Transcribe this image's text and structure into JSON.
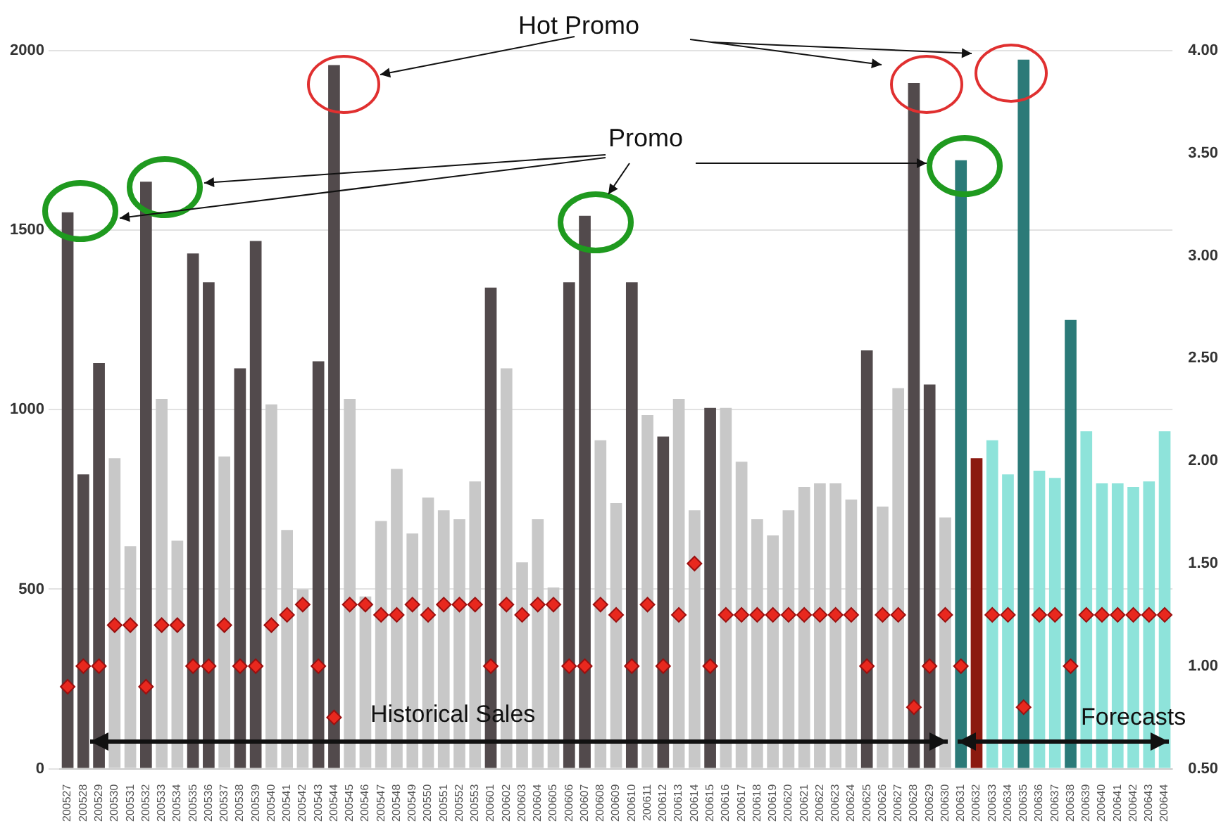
{
  "chart_data": {
    "type": "bar",
    "categories": [
      "200527",
      "200528",
      "200529",
      "200530",
      "200531",
      "200532",
      "200533",
      "200534",
      "200535",
      "200536",
      "200537",
      "200538",
      "200539",
      "200540",
      "200541",
      "200542",
      "200543",
      "200544",
      "200545",
      "200546",
      "200547",
      "200548",
      "200549",
      "200550",
      "200551",
      "200552",
      "200553",
      "200601",
      "200602",
      "200603",
      "200604",
      "200605",
      "200606",
      "200607",
      "200608",
      "200609",
      "200610",
      "200611",
      "200612",
      "200613",
      "200614",
      "200615",
      "200616",
      "200617",
      "200618",
      "200619",
      "200620",
      "200621",
      "200622",
      "200623",
      "200624",
      "200625",
      "200626",
      "200627",
      "200628",
      "200629",
      "200630",
      "200631",
      "200632",
      "200633",
      "200634",
      "200635",
      "200636",
      "200637",
      "200638",
      "200639",
      "200640",
      "200641",
      "200642",
      "200643",
      "200644"
    ],
    "series": [
      {
        "values": [
          1550,
          820,
          1130,
          865,
          620,
          1635,
          1030,
          635,
          1435,
          1355,
          870,
          1115,
          1470,
          1015,
          665,
          500,
          1135,
          1960,
          1030,
          480,
          690,
          835,
          655,
          755,
          720,
          695,
          800,
          1340,
          1115,
          575,
          695,
          505,
          1355,
          1540,
          915,
          740,
          1355,
          985,
          925,
          1030,
          720,
          1005,
          1005,
          855,
          695,
          650,
          720,
          785,
          795,
          795,
          750,
          1165,
          730,
          1060,
          1910,
          1070,
          700,
          1695,
          865,
          915,
          820,
          1975,
          830,
          810,
          1250,
          940,
          795,
          795,
          785,
          800,
          940
        ],
        "colors": [
          "#524a4c",
          "#524a4c",
          "#524a4c",
          "#c8c8c8",
          "#c8c8c8",
          "#524a4c",
          "#c8c8c8",
          "#c8c8c8",
          "#524a4c",
          "#524a4c",
          "#c8c8c8",
          "#524a4c",
          "#524a4c",
          "#c8c8c8",
          "#c8c8c8",
          "#c8c8c8",
          "#524a4c",
          "#524a4c",
          "#c8c8c8",
          "#c8c8c8",
          "#c8c8c8",
          "#c8c8c8",
          "#c8c8c8",
          "#c8c8c8",
          "#c8c8c8",
          "#c8c8c8",
          "#c8c8c8",
          "#524a4c",
          "#c8c8c8",
          "#c8c8c8",
          "#c8c8c8",
          "#c8c8c8",
          "#524a4c",
          "#524a4c",
          "#c8c8c8",
          "#c8c8c8",
          "#524a4c",
          "#c8c8c8",
          "#524a4c",
          "#c8c8c8",
          "#c8c8c8",
          "#524a4c",
          "#c8c8c8",
          "#c8c8c8",
          "#c8c8c8",
          "#c8c8c8",
          "#c8c8c8",
          "#c8c8c8",
          "#c8c8c8",
          "#c8c8c8",
          "#c8c8c8",
          "#524a4c",
          "#c8c8c8",
          "#c8c8c8",
          "#524a4c",
          "#524a4c",
          "#c8c8c8",
          "#2b7a78",
          "#8b1a10",
          "#8ee3da",
          "#8ee3da",
          "#2b7a78",
          "#8ee3da",
          "#8ee3da",
          "#2b7a78",
          "#8ee3da",
          "#8ee3da",
          "#8ee3da",
          "#8ee3da",
          "#8ee3da",
          "#8ee3da"
        ]
      },
      {
        "type": "scatter",
        "axis": "y2",
        "color": "#e8281e",
        "values": [
          0.9,
          1,
          1,
          1.2,
          1.2,
          0.9,
          1.2,
          1.2,
          1,
          1,
          1.2,
          1,
          1,
          1.2,
          1.25,
          1.3,
          1,
          0.75,
          1.3,
          1.3,
          1.25,
          1.25,
          1.3,
          1.25,
          1.3,
          1.3,
          1.3,
          1,
          1.3,
          1.25,
          1.3,
          1.3,
          1,
          1,
          1.3,
          1.25,
          1,
          1.3,
          1,
          1.25,
          1.5,
          1,
          1.25,
          1.25,
          1.25,
          1.25,
          1.25,
          1.25,
          1.25,
          1.25,
          1.25,
          1,
          1.25,
          1.25,
          0.8,
          1,
          1.25,
          1,
          null,
          1.25,
          1.25,
          0.8,
          1.25,
          1.25,
          1,
          1.25,
          1.25,
          1.25,
          1.25,
          1.25,
          1.25
        ]
      }
    ],
    "ylim": [
      0,
      2000
    ],
    "yticks": [
      0,
      500,
      1000,
      1500,
      2000
    ],
    "y2lim": [
      0.5,
      4
    ],
    "y2ticks": [
      {
        "value": 0.5,
        "label": "0.50"
      },
      {
        "value": 1,
        "label": "1.00"
      },
      {
        "value": 1.5,
        "label": "1.50"
      },
      {
        "value": 2,
        "label": "2.00"
      },
      {
        "value": 2.5,
        "label": "2.50"
      },
      {
        "value": 3,
        "label": "3.00"
      },
      {
        "value": 3.5,
        "label": "3.50"
      },
      {
        "value": 4,
        "label": "4.00"
      }
    ],
    "grid": "y",
    "marker": "diamond",
    "annotations": [
      "Hot Promo",
      "Promo",
      "Historical Sales",
      {
        "text": "Forecasts",
        "x": "200640"
      }
    ]
  }
}
